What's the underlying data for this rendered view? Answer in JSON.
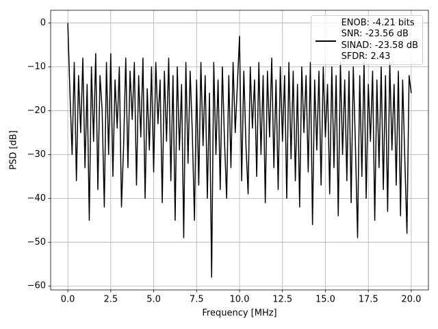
{
  "chart_data": {
    "type": "line",
    "xlabel": "Frequency [MHz]",
    "ylabel": "PSD [dB]",
    "x": [
      0,
      0.125,
      0.25,
      0.375,
      0.5,
      0.625,
      0.75,
      0.875,
      1,
      1.125,
      1.25,
      1.375,
      1.5,
      1.625,
      1.75,
      1.875,
      2,
      2.125,
      2.25,
      2.375,
      2.5,
      2.625,
      2.75,
      2.875,
      3,
      3.125,
      3.25,
      3.375,
      3.5,
      3.625,
      3.75,
      3.875,
      4,
      4.125,
      4.25,
      4.375,
      4.5,
      4.625,
      4.75,
      4.875,
      5,
      5.125,
      5.25,
      5.375,
      5.5,
      5.625,
      5.75,
      5.875,
      6,
      6.125,
      6.25,
      6.375,
      6.5,
      6.625,
      6.75,
      6.875,
      7,
      7.125,
      7.25,
      7.375,
      7.5,
      7.625,
      7.75,
      7.875,
      8,
      8.125,
      8.25,
      8.375,
      8.5,
      8.625,
      8.75,
      8.875,
      9,
      9.125,
      9.25,
      9.375,
      9.5,
      9.625,
      9.75,
      9.875,
      10,
      10.125,
      10.25,
      10.375,
      10.5,
      10.625,
      10.75,
      10.875,
      11,
      11.125,
      11.25,
      11.375,
      11.5,
      11.625,
      11.75,
      11.875,
      12,
      12.125,
      12.25,
      12.375,
      12.5,
      12.625,
      12.75,
      12.875,
      13,
      13.125,
      13.25,
      13.375,
      13.5,
      13.625,
      13.75,
      13.875,
      14,
      14.125,
      14.25,
      14.375,
      14.5,
      14.625,
      14.75,
      14.875,
      15,
      15.125,
      15.25,
      15.375,
      15.5,
      15.625,
      15.75,
      15.875,
      16,
      16.125,
      16.25,
      16.375,
      16.5,
      16.625,
      16.75,
      16.875,
      17,
      17.125,
      17.25,
      17.375,
      17.5,
      17.625,
      17.75,
      17.875,
      18,
      18.125,
      18.25,
      18.375,
      18.5,
      18.625,
      18.75,
      18.875,
      19,
      19.125,
      19.25,
      19.375,
      19.5,
      19.625,
      19.75,
      19.875,
      20
    ],
    "series": [
      {
        "name": "ENOB: -4.21 bits\nSNR: -23.56 dB\nSINAD: -23.58 dB\nSFDR: 2.43",
        "color": "#000000",
        "values": [
          0,
          -16,
          -30,
          -9,
          -36,
          -12,
          -25,
          -8,
          -33,
          -14,
          -45,
          -10,
          -27,
          -7,
          -38,
          -12,
          -20,
          -42,
          -9,
          -30,
          -7,
          -35,
          -13,
          -24,
          -10,
          -42,
          -28,
          -8,
          -33,
          -11,
          -22,
          -9,
          -37,
          -12,
          -26,
          -8,
          -40,
          -15,
          -29,
          -10,
          -34,
          -9,
          -23,
          -13,
          -41,
          -11,
          -27,
          -8,
          -36,
          -12,
          -45,
          -10,
          -29,
          -14,
          -49,
          -9,
          -32,
          -11,
          -25,
          -45,
          -13,
          -37,
          -9,
          -28,
          -12,
          -40,
          -16,
          -58,
          -9,
          -30,
          -13,
          -38,
          -10,
          -27,
          -40,
          -12,
          -33,
          -9,
          -25,
          -14,
          -3,
          -36,
          -11,
          -28,
          -39,
          -10,
          -24,
          -13,
          -35,
          -9,
          -30,
          -12,
          -41,
          -11,
          -26,
          -8,
          -33,
          -13,
          -38,
          -10,
          -27,
          -12,
          -40,
          -9,
          -31,
          -11,
          -36,
          -14,
          -42,
          -10,
          -25,
          -12,
          -34,
          -9,
          -46,
          -13,
          -29,
          -11,
          -37,
          -10,
          -26,
          -14,
          -39,
          -10,
          -33,
          -12,
          -44,
          -9,
          -30,
          -13,
          -36,
          -11,
          -41,
          -10,
          -28,
          -49,
          -12,
          -35,
          -9,
          -40,
          -14,
          -27,
          -11,
          -45,
          -13,
          -33,
          -10,
          -38,
          -12,
          -43,
          -9,
          -29,
          -14,
          -37,
          -11,
          -44,
          -13,
          -31,
          -48,
          -12,
          -16
        ]
      }
    ],
    "xlim": [
      -1,
      21
    ],
    "ylim": [
      -60.9,
      2.9
    ],
    "xticks": [
      {
        "value": 0,
        "label": "0.0"
      },
      {
        "value": 2.5,
        "label": "2.5"
      },
      {
        "value": 5,
        "label": "5.0"
      },
      {
        "value": 7.5,
        "label": "7.5"
      },
      {
        "value": 10,
        "label": "10.0"
      },
      {
        "value": 12.5,
        "label": "12.5"
      },
      {
        "value": 15,
        "label": "15.0"
      },
      {
        "value": 17.5,
        "label": "17.5"
      },
      {
        "value": 20,
        "label": "20.0"
      }
    ],
    "yticks": [
      {
        "value": -60,
        "label": "−60"
      },
      {
        "value": -50,
        "label": "−50"
      },
      {
        "value": -40,
        "label": "−40"
      },
      {
        "value": -30,
        "label": "−30"
      },
      {
        "value": -20,
        "label": "−20"
      },
      {
        "value": -10,
        "label": "−10"
      },
      0
    ],
    "grid": true,
    "legend": "upper right"
  }
}
